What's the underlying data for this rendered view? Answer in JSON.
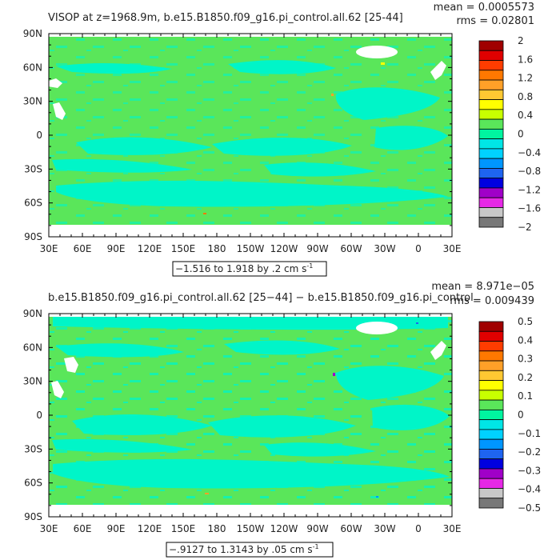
{
  "chart_data": [
    {
      "type": "heatmap",
      "title": "VISOP at z=1968.9m, b.e15.B1850.f09_g16.pi_control.all.62 [25-44]",
      "stats": {
        "mean": "mean = 0.0005573",
        "rms": "rms = 0.02801"
      },
      "x_ticks": [
        "30E",
        "60E",
        "90E",
        "120E",
        "150E",
        "180",
        "150W",
        "120W",
        "90W",
        "60W",
        "30W",
        "0",
        "30E"
      ],
      "y_ticks": [
        "90N",
        "60N",
        "30N",
        "0",
        "30S",
        "60S",
        "90S"
      ],
      "range_label": "−1.516 to 1.918 by .2 cm s",
      "range_exp": "-1",
      "colorbar": {
        "levels": [
          "2",
          "1.6",
          "1.2",
          "0.8",
          "0.4",
          "0",
          "−0.4",
          "−0.8",
          "−1.2",
          "−1.6",
          "−2"
        ],
        "colors": [
          "#a00000",
          "#e00000",
          "#ff3c00",
          "#ff7800",
          "#ffa028",
          "#ffc832",
          "#ffff00",
          "#c8ff00",
          "#5ae65a",
          "#00f5a0",
          "#00e6e6",
          "#00d2ff",
          "#0096ff",
          "#1e64f0",
          "#0000e0",
          "#a000c8",
          "#e628e6",
          "#c8c8c8",
          "#787878"
        ]
      }
    },
    {
      "type": "heatmap",
      "title": "b.e15.B1850.f09_g16.pi_control.all.62 [25−44] − b.e15.B1850.f09_g16.pi_control",
      "stats": {
        "mean": "mean = 8.971e−05",
        "rms": "rms = 0.009439"
      },
      "x_ticks": [
        "30E",
        "60E",
        "90E",
        "120E",
        "150E",
        "180",
        "150W",
        "120W",
        "90W",
        "60W",
        "30W",
        "0",
        "30E"
      ],
      "y_ticks": [
        "90N",
        "60N",
        "30N",
        "0",
        "30S",
        "60S",
        "90S"
      ],
      "range_label": "−.9127 to 1.3143 by .05 cm s",
      "range_exp": "-1",
      "colorbar": {
        "levels": [
          "0.5",
          "0.4",
          "0.3",
          "0.2",
          "0.1",
          "0",
          "−0.1",
          "−0.2",
          "−0.3",
          "−0.4",
          "−0.5"
        ],
        "colors": [
          "#a00000",
          "#e00000",
          "#ff3c00",
          "#ff7800",
          "#ffa028",
          "#ffc832",
          "#ffff00",
          "#c8ff00",
          "#5ae65a",
          "#00f5a0",
          "#00e6e6",
          "#00d2ff",
          "#0096ff",
          "#1e64f0",
          "#0000e0",
          "#a000c8",
          "#e628e6",
          "#c8c8c8",
          "#787878"
        ]
      }
    }
  ]
}
